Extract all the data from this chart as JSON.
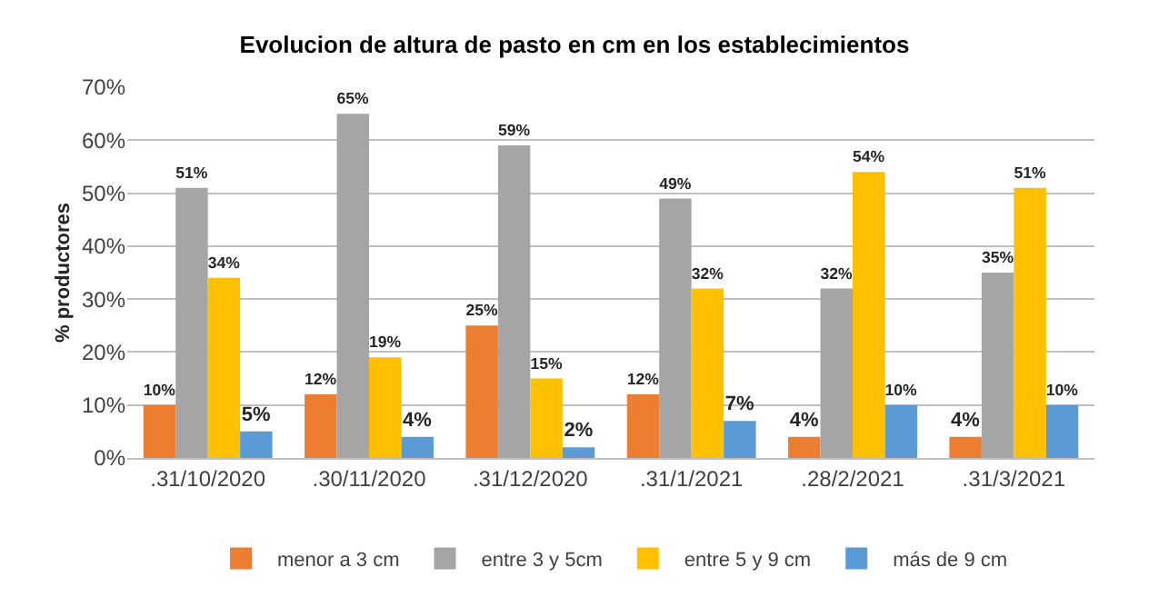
{
  "chart_data": {
    "type": "bar",
    "title": "Evolucion de altura de pasto en cm en los establecimientos",
    "ylabel": "% productores",
    "categories": [
      ".31/10/2020",
      ".30/11/2020",
      ".31/12/2020",
      ".31/1/2021",
      ".28/2/2021",
      ".31/3/2021"
    ],
    "series": [
      {
        "name": "menor a 3 cm",
        "color": "#ed7d31",
        "values": [
          10,
          12,
          25,
          12,
          4,
          4
        ],
        "value_labels": [
          "10%",
          "12%",
          "25%",
          "12%",
          "4%",
          "4%"
        ]
      },
      {
        "name": "entre 3 y 5cm",
        "color": "#a5a5a5",
        "values": [
          51,
          65,
          59,
          49,
          32,
          35
        ],
        "value_labels": [
          "51%",
          "65%",
          "59%",
          "49%",
          "32%",
          "35%"
        ]
      },
      {
        "name": "entre 5 y 9 cm",
        "color": "#ffc000",
        "values": [
          34,
          19,
          15,
          32,
          54,
          51
        ],
        "value_labels": [
          "34%",
          "19%",
          "15%",
          "32%",
          "54%",
          "51%"
        ]
      },
      {
        "name": "más de 9 cm",
        "color": "#5b9bd5",
        "values": [
          5,
          4,
          2,
          7,
          10,
          10
        ],
        "value_labels": [
          "5%",
          "4%",
          "2%",
          "7%",
          "10%",
          "10%"
        ]
      }
    ],
    "ylim": [
      0,
      70
    ],
    "yticks": [
      {
        "value": 0,
        "label": "0%"
      },
      {
        "value": 10,
        "label": "10%"
      },
      {
        "value": 20,
        "label": "20%"
      },
      {
        "value": 30,
        "label": "30%"
      },
      {
        "value": 40,
        "label": "40%"
      },
      {
        "value": 50,
        "label": "50%"
      },
      {
        "value": 60,
        "label": "60%"
      },
      {
        "value": 70,
        "label": "70%"
      }
    ],
    "grid": "y",
    "legend": "bottom"
  }
}
